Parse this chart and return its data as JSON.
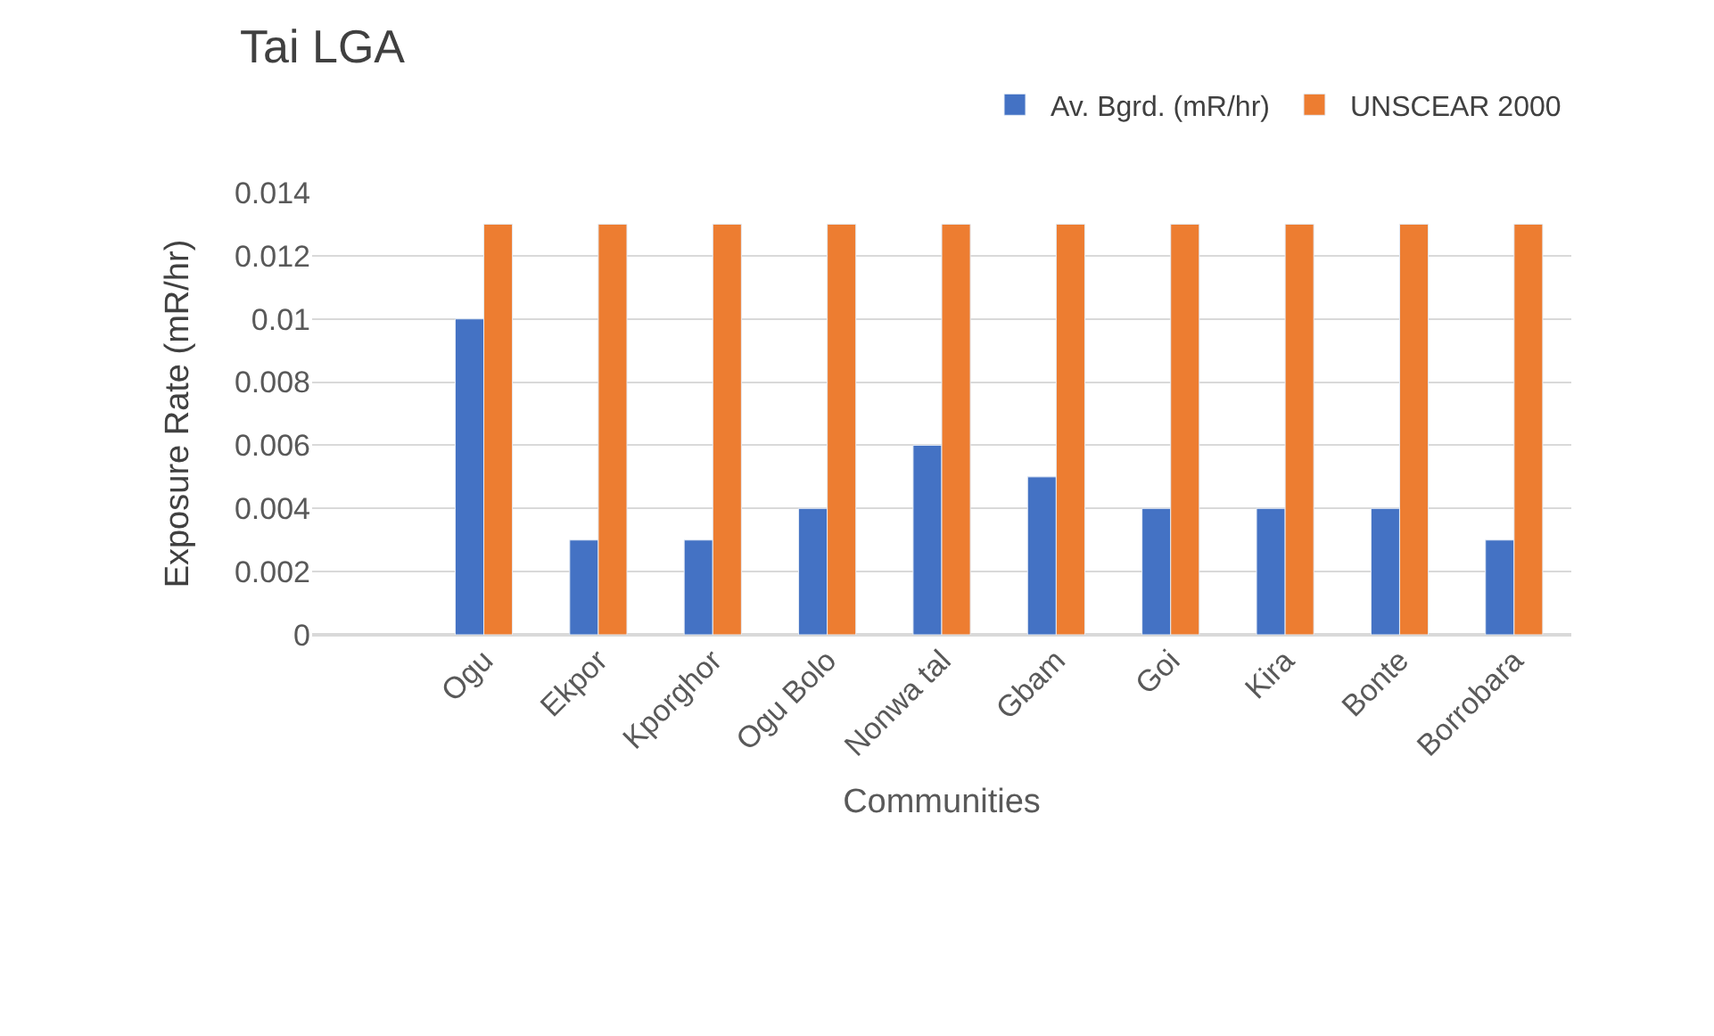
{
  "chart_data": {
    "type": "bar",
    "title": "Tai LGA",
    "xlabel": "Communities",
    "ylabel": "Exposure Rate (mR/hr)",
    "categories": [
      null,
      "Ogu",
      "Ekpor",
      "Kporghor",
      "Ogu Bolo",
      "Nonwa tal",
      "Gbam",
      "Goi",
      "Kira",
      "Bonte",
      "Borrobara"
    ],
    "series": [
      {
        "name": "Av. Bgrd. (mR/hr)",
        "color": "#4472c4",
        "values": [
          null,
          0.01,
          0.003,
          0.003,
          0.004,
          0.006,
          0.005,
          0.004,
          0.004,
          0.004,
          0.003
        ]
      },
      {
        "name": "UNSCEAR 2000",
        "color": "#ed7d31",
        "values": [
          null,
          0.013,
          0.013,
          0.013,
          0.013,
          0.013,
          0.013,
          0.013,
          0.013,
          0.013,
          0.013
        ]
      }
    ],
    "ylim": [
      0,
      0.014
    ],
    "yticks": [
      0,
      0.002,
      0.004,
      0.006,
      0.008,
      0.01,
      0.012,
      0.014
    ],
    "grid": "y",
    "legend": "top right"
  }
}
